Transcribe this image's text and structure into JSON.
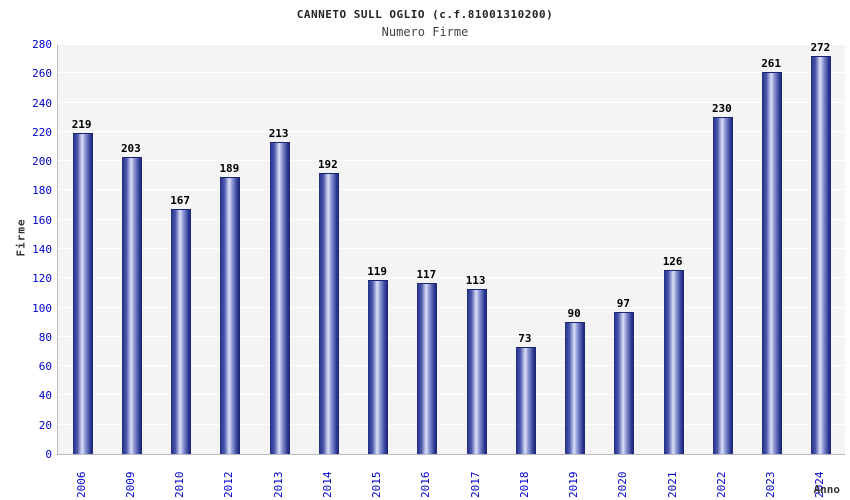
{
  "header": {
    "title": "CANNETO SULL OGLIO (c.f.81001310200)",
    "subtitle": "Numero Firme"
  },
  "chart_data": {
    "type": "bar",
    "title": "CANNETO SULL OGLIO (c.f.81001310200)",
    "subtitle": "Numero Firme",
    "xlabel": "Anno",
    "ylabel": "Firme",
    "categories": [
      "2006",
      "2009",
      "2010",
      "2012",
      "2013",
      "2014",
      "2015",
      "2016",
      "2017",
      "2018",
      "2019",
      "2020",
      "2021",
      "2022",
      "2023",
      "2024"
    ],
    "values": [
      219,
      203,
      167,
      189,
      213,
      192,
      119,
      117,
      113,
      73,
      90,
      97,
      126,
      230,
      261,
      272
    ],
    "ylim": [
      0,
      280
    ],
    "ytick_step": 20,
    "grid": true,
    "legend": "none",
    "colors": {
      "bar_dark": "#222e86",
      "bar_light": "#dbe0f6",
      "axis_tick_label": "#0000cc",
      "value_label": "#000000",
      "title": "#222222",
      "subtitle": "#444444",
      "plot_background": "#f4f4f4",
      "grid_line": "#ffffff",
      "page_background": "#ffffff"
    }
  }
}
